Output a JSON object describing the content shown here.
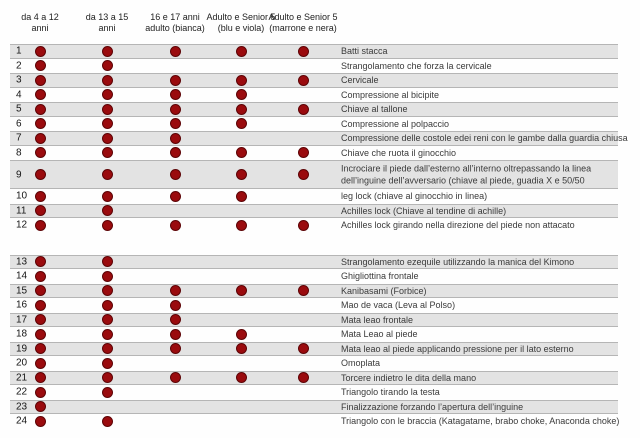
{
  "colors": {
    "dot": "#9a0b0e",
    "dot_border": "#5d0406",
    "band": "#e3e3e3",
    "band_border": "#b5b5b5"
  },
  "chart_data": {
    "type": "table",
    "title": "",
    "legend_position": "top",
    "marker_glyph": "filled-dark-red-circle",
    "columns": [
      {
        "label": "da 4 a 12 anni",
        "lines": [
          "da 4 a 12",
          "anni"
        ]
      },
      {
        "label": "da 13 a 15 anni",
        "lines": [
          "da 13 a 15",
          "anni"
        ]
      },
      {
        "label": "16 e 17 anni adulto (bianca)",
        "lines": [
          "16 e 17 anni",
          "adulto (bianca)"
        ]
      },
      {
        "label": "Adulto e Senior 5 (blu e viola)",
        "lines": [
          "Adulto e Senior 5",
          "(blu e viola)"
        ]
      },
      {
        "label": "Adulto e Senior 5 (marrone e nera)",
        "lines": [
          "Adulto e Senior 5",
          "(marrone e nera)"
        ]
      }
    ],
    "rows": [
      {
        "num": "1",
        "label": "Batti stacca",
        "values": [
          1,
          1,
          1,
          1,
          1
        ]
      },
      {
        "num": "2",
        "label": "Strangolamento che forza la  cervicale",
        "values": [
          1,
          1,
          0,
          0,
          0
        ]
      },
      {
        "num": "3",
        "label": "Cervicale",
        "values": [
          1,
          1,
          1,
          1,
          1
        ]
      },
      {
        "num": "4",
        "label": "Compressione al bicipite",
        "values": [
          1,
          1,
          1,
          1,
          0
        ]
      },
      {
        "num": "5",
        "label": "Chiave al tallone",
        "values": [
          1,
          1,
          1,
          1,
          1
        ]
      },
      {
        "num": "6",
        "label": "Compressione al polpaccio",
        "values": [
          1,
          1,
          1,
          1,
          0
        ]
      },
      {
        "num": "7",
        "label": "Compressione delle costole edei reni con le gambe dalla  guardia chiusa",
        "values": [
          1,
          1,
          1,
          0,
          0
        ]
      },
      {
        "num": "8",
        "label": "Chiave che ruota il ginocchio",
        "values": [
          1,
          1,
          1,
          1,
          1
        ]
      },
      {
        "num": "9",
        "label": "Incrociare il piede dall’esterno all’interno oltrepassando la linea dell’inguine dell’avversario (chiave al piede, guadia X e 50/50",
        "values": [
          1,
          1,
          1,
          1,
          1
        ],
        "tall": true
      },
      {
        "num": "10",
        "label": "leg lock (chiave al ginocchio in linea)",
        "values": [
          1,
          1,
          1,
          1,
          0
        ]
      },
      {
        "num": "11",
        "label": "Achilles lock (Chiave al tendine di achille)",
        "values": [
          1,
          1,
          0,
          0,
          0
        ]
      },
      {
        "num": "12",
        "label": "Achilles lock girando nella direzione del piede non attacato",
        "values": [
          1,
          1,
          1,
          1,
          1
        ],
        "spacer_after": true
      },
      {
        "num": "13",
        "label": "Strangolamento ezequile utilizzando la manica del Kimono",
        "values": [
          1,
          1,
          0,
          0,
          0
        ]
      },
      {
        "num": "14",
        "label": "Ghigliottina frontale",
        "values": [
          1,
          1,
          0,
          0,
          0
        ]
      },
      {
        "num": "15",
        "label": "Kanibasami (Forbice)",
        "values": [
          1,
          1,
          1,
          1,
          1
        ]
      },
      {
        "num": "16",
        "label": "Mao de vaca (Leva al Polso)",
        "values": [
          1,
          1,
          1,
          0,
          0
        ]
      },
      {
        "num": "17",
        "label": "Mata leao frontale",
        "values": [
          1,
          1,
          1,
          0,
          0
        ]
      },
      {
        "num": "18",
        "label": "Mata Leao al piede",
        "values": [
          1,
          1,
          1,
          1,
          0
        ]
      },
      {
        "num": "19",
        "label": "Mata leao al piede applicando pressione per il lato esterno",
        "values": [
          1,
          1,
          1,
          1,
          1
        ]
      },
      {
        "num": "20",
        "label": "Omoplata",
        "values": [
          1,
          1,
          0,
          0,
          0
        ]
      },
      {
        "num": "21",
        "label": "Torcere  indietro le dita della mano",
        "values": [
          1,
          1,
          1,
          1,
          1
        ]
      },
      {
        "num": "22",
        "label": "Triangolo tirando la testa",
        "values": [
          1,
          1,
          0,
          0,
          0
        ]
      },
      {
        "num": "23",
        "label": "Finalizzazione forzando l’apertura dell’inguine",
        "values": [
          1,
          0,
          0,
          0,
          0
        ]
      },
      {
        "num": "24",
        "label": "Triangolo con le braccia (Katagatame, brabo choke, Anaconda choke)",
        "values": [
          1,
          1,
          0,
          0,
          0
        ]
      }
    ]
  }
}
